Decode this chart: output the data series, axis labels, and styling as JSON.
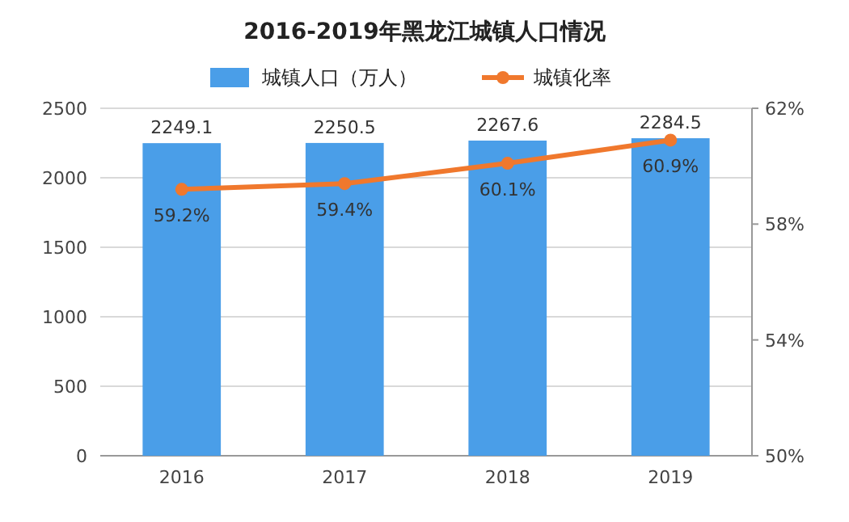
{
  "chart_data": {
    "type": "bar",
    "title": "2016-2019年黑龙江城镇人口情况",
    "categories": [
      "2016",
      "2017",
      "2018",
      "2019"
    ],
    "series": [
      {
        "name": "城镇人口（万人）",
        "color": "#4a9ee8",
        "values": [
          2249.1,
          2250.5,
          2267.6,
          2284.5
        ],
        "value_labels": [
          "2249.1",
          "2250.5",
          "2267.6",
          "2284.5"
        ]
      },
      {
        "name": "城镇化率",
        "type": "line",
        "axis": "y2",
        "color": "#f0782d",
        "values": [
          59.2,
          59.4,
          60.1,
          60.9
        ],
        "value_labels": [
          "59.2%",
          "59.4%",
          "60.1%",
          "60.9%"
        ]
      }
    ],
    "ylim": [
      0,
      2500
    ],
    "yticks": [
      0,
      500,
      1000,
      1500,
      2000,
      2500
    ],
    "y2lim": [
      50,
      62
    ],
    "y2ticks": [
      {
        "value": 50,
        "label": "50%"
      },
      {
        "value": 54,
        "label": "54%"
      },
      {
        "value": 58,
        "label": "58%"
      },
      {
        "value": 62,
        "label": "62%"
      }
    ],
    "grid": "y",
    "legend": "top",
    "marker": "circle",
    "line_style": "solid"
  }
}
